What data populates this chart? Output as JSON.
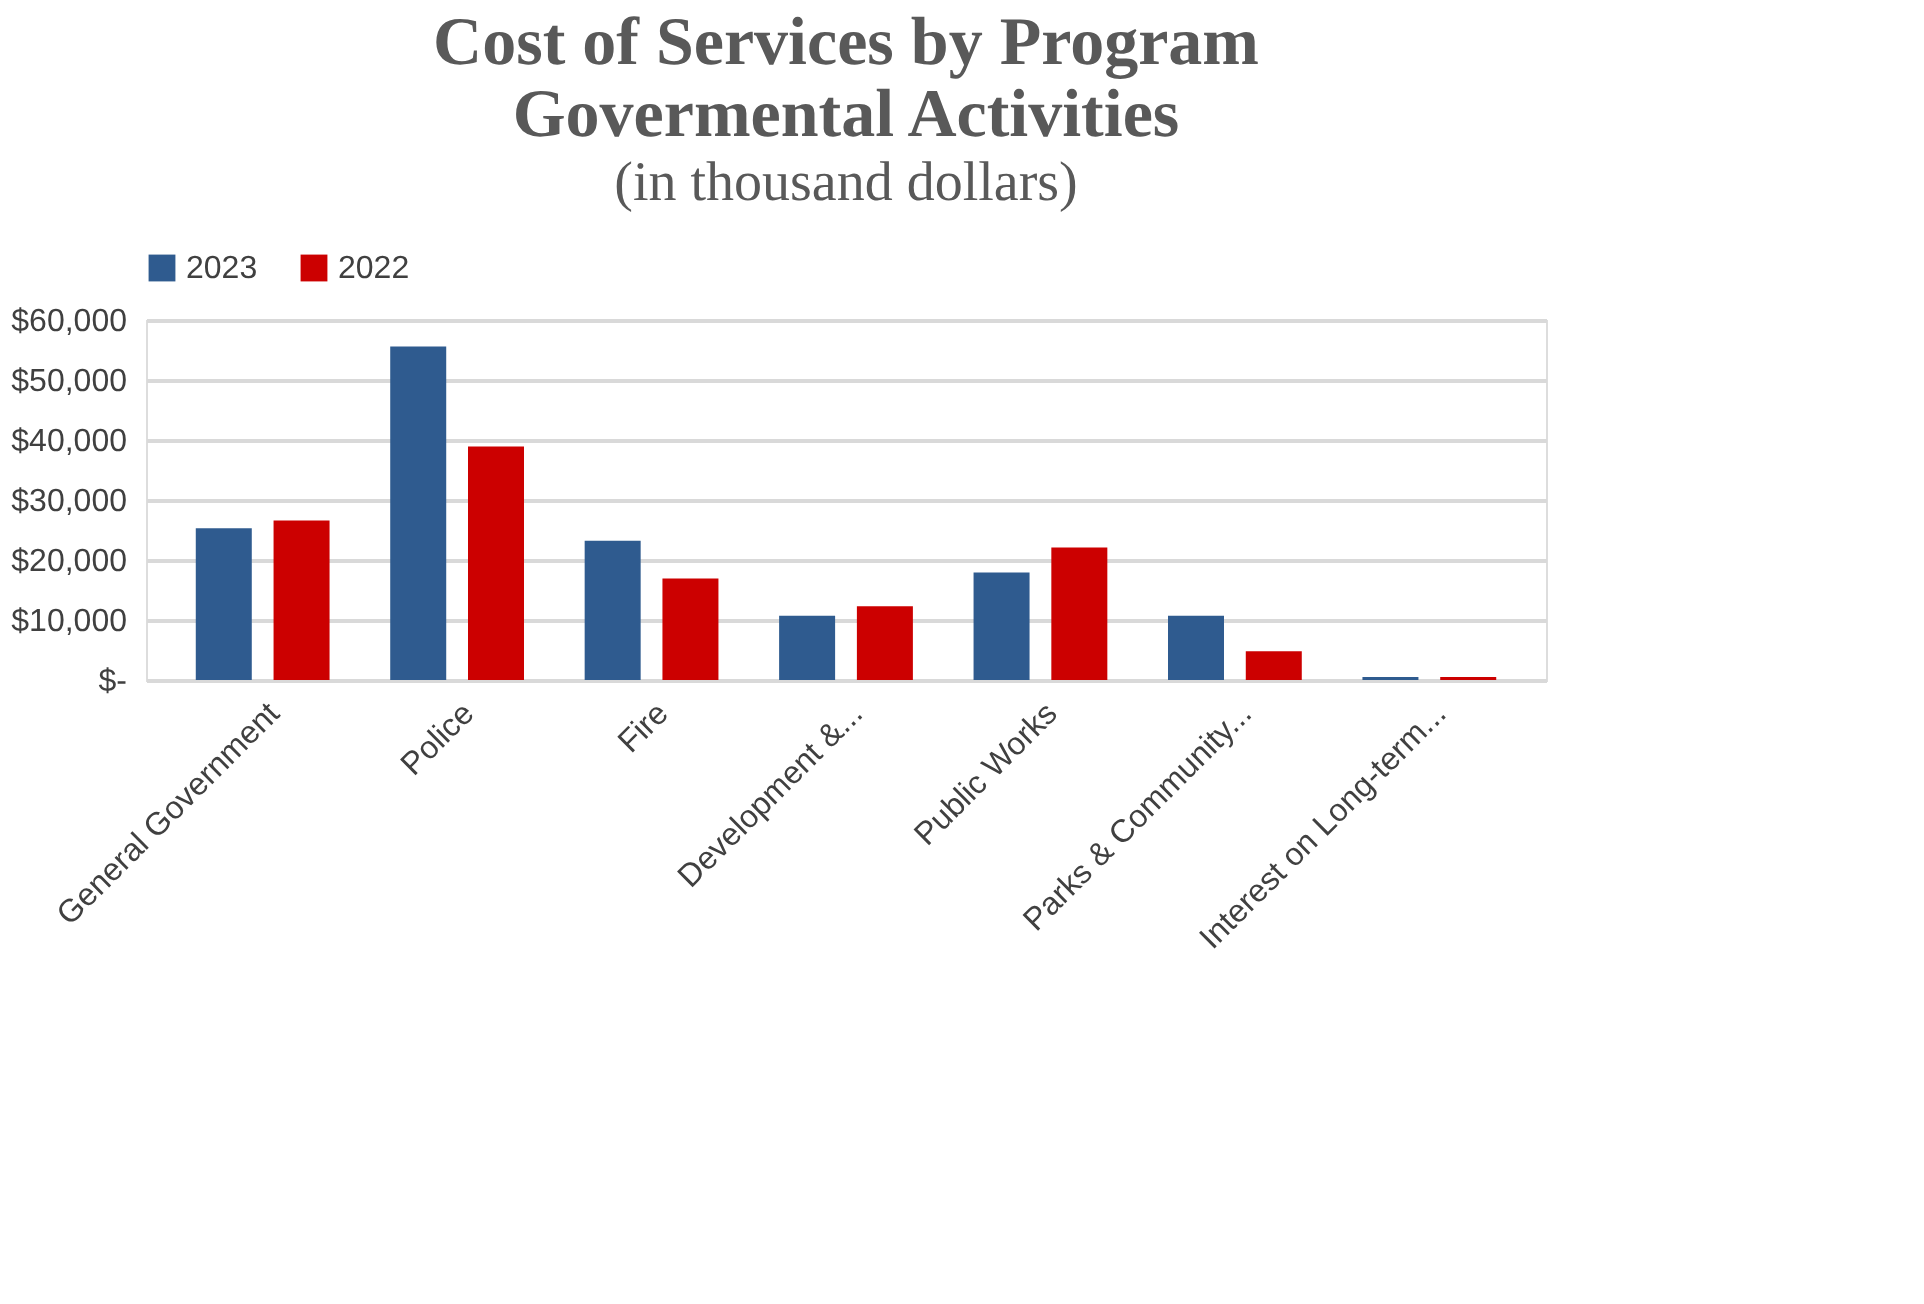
{
  "chart_data": {
    "type": "bar",
    "title": [
      "Cost of Services by Program",
      "Govermental Activities"
    ],
    "subtitle": "(in thousand dollars)",
    "categories": [
      "General Government",
      "Police",
      "Fire",
      "Development &...",
      "Public Works",
      "Parks & Community...",
      "Interest on Long-term..."
    ],
    "series": [
      {
        "name": "2023",
        "color": "#2f5b8f",
        "values": [
          25300,
          55600,
          23200,
          10700,
          17900,
          10700,
          500
        ]
      },
      {
        "name": "2022",
        "color": "#cc0000",
        "values": [
          26600,
          38900,
          16900,
          12300,
          22100,
          4800,
          500
        ]
      }
    ],
    "ylim": [
      0,
      60000
    ],
    "yticks": [
      {
        "value": 0,
        "label": "$-"
      },
      {
        "value": 10000,
        "label": "$10,000"
      },
      {
        "value": 20000,
        "label": "$20,000"
      },
      {
        "value": 30000,
        "label": "$30,000"
      },
      {
        "value": 40000,
        "label": "$40,000"
      },
      {
        "value": 50000,
        "label": "$50,000"
      },
      {
        "value": 60000,
        "label": "$60,000"
      }
    ],
    "grid": "y",
    "legend": "top"
  }
}
